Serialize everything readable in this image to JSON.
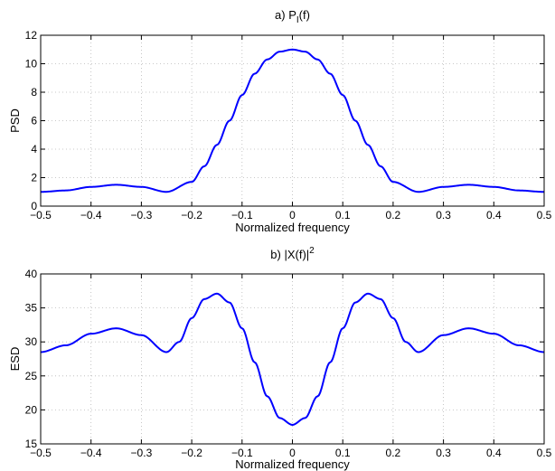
{
  "chart_data": [
    {
      "type": "line",
      "title": "a) P",
      "title_subscript": "I",
      "title_suffix": "(f)",
      "xlabel": "Normalized frequency",
      "ylabel": "PSD",
      "xlim": [
        -0.5,
        0.5
      ],
      "ylim": [
        0,
        12
      ],
      "xticks": [
        -0.5,
        -0.4,
        -0.3,
        -0.2,
        -0.1,
        0,
        0.1,
        0.2,
        0.3,
        0.4,
        0.5
      ],
      "xtick_labels": [
        "−0.5",
        "−0.4",
        "−0.3",
        "−0.2",
        "−0.1",
        "0",
        "0.1",
        "0.2",
        "0.3",
        "0.4",
        "0.5"
      ],
      "yticks": [
        0,
        2,
        4,
        6,
        8,
        10,
        12
      ],
      "ytick_labels": [
        "0",
        "2",
        "4",
        "6",
        "8",
        "10",
        "12"
      ],
      "grid": true,
      "line_color": "#0000ff",
      "series": [
        {
          "x": [
            -0.5,
            -0.45,
            -0.4,
            -0.35,
            -0.3,
            -0.25,
            -0.2,
            -0.175,
            -0.15,
            -0.125,
            -0.1,
            -0.075,
            -0.05,
            -0.025,
            0,
            0.025,
            0.05,
            0.075,
            0.1,
            0.125,
            0.15,
            0.175,
            0.2,
            0.25,
            0.3,
            0.35,
            0.4,
            0.45,
            0.5
          ],
          "y": [
            1.0,
            1.1,
            1.35,
            1.5,
            1.35,
            1.0,
            1.7,
            2.8,
            4.3,
            6.0,
            7.8,
            9.3,
            10.3,
            10.85,
            11.0,
            10.85,
            10.3,
            9.3,
            7.8,
            6.0,
            4.3,
            2.8,
            1.7,
            1.0,
            1.35,
            1.5,
            1.35,
            1.1,
            1.0
          ]
        }
      ]
    },
    {
      "type": "line",
      "title": "b) |X(f)|",
      "title_superscript": "2",
      "title_suffix": "",
      "xlabel": "Normalized frequency",
      "ylabel": "ESD",
      "xlim": [
        -0.5,
        0.5
      ],
      "ylim": [
        15,
        40
      ],
      "xticks": [
        -0.5,
        -0.4,
        -0.3,
        -0.2,
        -0.1,
        0,
        0.1,
        0.2,
        0.3,
        0.4,
        0.5
      ],
      "xtick_labels": [
        "−0.5",
        "−0.4",
        "−0.3",
        "−0.2",
        "−0.1",
        "0",
        "0.1",
        "0.2",
        "0.3",
        "0.4",
        "0.5"
      ],
      "yticks": [
        15,
        20,
        25,
        30,
        35,
        40
      ],
      "ytick_labels": [
        "15",
        "20",
        "25",
        "30",
        "35",
        "40"
      ],
      "grid": true,
      "line_color": "#0000ff",
      "series": [
        {
          "x": [
            -0.5,
            -0.45,
            -0.4,
            -0.35,
            -0.3,
            -0.25,
            -0.225,
            -0.2,
            -0.175,
            -0.15,
            -0.125,
            -0.1,
            -0.075,
            -0.05,
            -0.025,
            0,
            0.025,
            0.05,
            0.075,
            0.1,
            0.125,
            0.15,
            0.175,
            0.2,
            0.225,
            0.25,
            0.3,
            0.35,
            0.4,
            0.45,
            0.5
          ],
          "y": [
            28.5,
            29.5,
            31.2,
            32.0,
            31.0,
            28.5,
            30.0,
            33.5,
            36.3,
            37.1,
            35.8,
            32.0,
            27.0,
            22.0,
            18.8,
            17.8,
            18.8,
            22.0,
            27.0,
            32.0,
            35.8,
            37.1,
            36.3,
            33.5,
            30.0,
            28.5,
            31.0,
            32.0,
            31.2,
            29.5,
            28.5
          ]
        }
      ]
    }
  ]
}
